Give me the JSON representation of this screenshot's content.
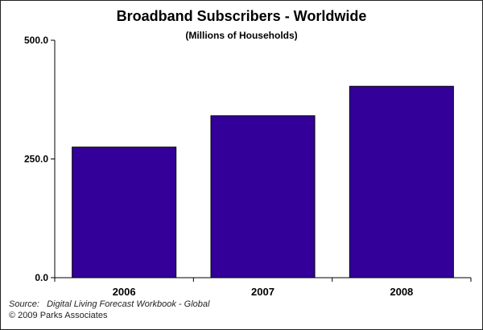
{
  "chart_data": {
    "type": "bar",
    "title": "Broadband Subscribers - Worldwide",
    "subtitle": "(Millions of Households)",
    "categories": [
      "2006",
      "2007",
      "2008"
    ],
    "values": [
      275,
      341,
      403
    ],
    "ylim": [
      0,
      500
    ],
    "yticks": [
      0,
      250,
      500
    ],
    "ytick_labels": [
      "0.0",
      "250.0",
      "500.0"
    ],
    "xlabel": "",
    "ylabel": "",
    "grid": false,
    "legend": "none",
    "bar_color": "#330099"
  },
  "footer": {
    "source": "Source:   Digital Living Forecast Workbook - Global",
    "copyright": "© 2009 Parks Associates"
  }
}
